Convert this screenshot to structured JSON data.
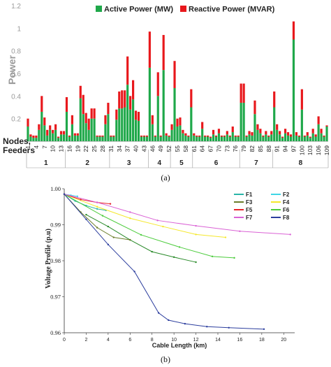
{
  "panel_a_label": "(a)",
  "panel_b_label": "(b)",
  "chart_data": [
    {
      "type": "bar",
      "stacked": true,
      "ylabel": "Power",
      "xlabel": "Nodes, Feeders",
      "ylim": [
        0,
        1.2
      ],
      "yticks": [
        "0.2",
        "0.4",
        "0.6",
        "0.8",
        "1",
        "1.2"
      ],
      "grid": false,
      "legend_position": "top",
      "colors": {
        "active": "#1fa84a",
        "reactive": "#e8181c"
      },
      "node_tick_labels": [
        "1",
        "4",
        "7",
        "10",
        "13",
        "16",
        "19",
        "22",
        "25",
        "28",
        "31",
        "34",
        "37",
        "40",
        "43",
        "46",
        "49",
        "52",
        "55",
        "58",
        "61",
        "64",
        "67",
        "70",
        "73",
        "76",
        "79",
        "82",
        "85",
        "88",
        "91",
        "94",
        "97",
        "100",
        "103",
        "106",
        "109"
      ],
      "feeders": [
        {
          "label": "1",
          "from": 1,
          "to": 14
        },
        {
          "label": "2",
          "from": 15,
          "to": 30
        },
        {
          "label": "3",
          "from": 31,
          "to": 44
        },
        {
          "label": "4",
          "from": 45,
          "to": 52
        },
        {
          "label": "5",
          "from": 53,
          "to": 60
        },
        {
          "label": "6",
          "from": 61,
          "to": 77
        },
        {
          "label": "7",
          "from": 78,
          "to": 89
        },
        {
          "label": "8",
          "from": 90,
          "to": 109
        }
      ],
      "series": [
        {
          "name": "Active Power (MW)",
          "values": [
            0.13,
            0.04,
            0.03,
            0.03,
            0.1,
            0.26,
            0.14,
            0.05,
            0.1,
            0.07,
            0.1,
            0.03,
            0.06,
            0.06,
            0.26,
            0.04,
            0.15,
            0.05,
            0.05,
            0.38,
            0.24,
            0.16,
            0.1,
            0.2,
            0.2,
            0.04,
            0.04,
            0.04,
            0.15,
            0.24,
            0.04,
            0.04,
            0.19,
            0.29,
            0.29,
            0.3,
            0.5,
            0.28,
            0.37,
            0.19,
            0.18,
            0.04,
            0.04,
            0.04,
            0.65,
            0.15,
            0.04,
            0.4,
            0.04,
            0.63,
            0.05,
            0.04,
            0.1,
            0.47,
            0.13,
            0.14,
            0.07,
            0.05,
            0.04,
            0.3,
            0.05,
            0.04,
            0.04,
            0.11,
            0.04,
            0.04,
            0.03,
            0.06,
            0.04,
            0.07,
            0.04,
            0.04,
            0.06,
            0.04,
            0.08,
            0.04,
            0.04,
            0.34,
            0.34,
            0.04,
            0.06,
            0.05,
            0.24,
            0.1,
            0.07,
            0.04,
            0.06,
            0.04,
            0.06,
            0.3,
            0.1,
            0.06,
            0.03,
            0.07,
            0.05,
            0.04,
            0.9,
            0.05,
            0.04,
            0.28,
            0.04,
            0.05,
            0.03,
            0.07,
            0.04,
            0.15,
            0.07,
            0.04,
            0.13
          ]
        },
        {
          "name": "Reactive Power (MVAR)",
          "values": [
            0.07,
            0.02,
            0.02,
            0.02,
            0.05,
            0.14,
            0.07,
            0.05,
            0.04,
            0.03,
            0.05,
            0.01,
            0.03,
            0.03,
            0.13,
            0.01,
            0.08,
            0.02,
            0.02,
            0.11,
            0.17,
            0.09,
            0.1,
            0.09,
            0.09,
            0.01,
            0.01,
            0.01,
            0.08,
            0.1,
            0.01,
            0.01,
            0.09,
            0.15,
            0.16,
            0.15,
            0.25,
            0.12,
            0.17,
            0.08,
            0.08,
            0.01,
            0.01,
            0.01,
            0.32,
            0.08,
            0.01,
            0.21,
            0.01,
            0.31,
            0.02,
            0.01,
            0.05,
            0.24,
            0.07,
            0.07,
            0.03,
            0.02,
            0.01,
            0.16,
            0.02,
            0.01,
            0.01,
            0.06,
            0.01,
            0.01,
            0.01,
            0.04,
            0.01,
            0.04,
            0.01,
            0.01,
            0.03,
            0.01,
            0.05,
            0.01,
            0.01,
            0.17,
            0.17,
            0.01,
            0.03,
            0.03,
            0.12,
            0.05,
            0.04,
            0.01,
            0.03,
            0.01,
            0.03,
            0.14,
            0.05,
            0.03,
            0.01,
            0.04,
            0.03,
            0.02,
            0.16,
            0.03,
            0.01,
            0.18,
            0.01,
            0.03,
            0.01,
            0.04,
            0.02,
            0.07,
            0.04,
            0.01,
            0.01
          ]
        }
      ]
    },
    {
      "type": "line",
      "xlabel": "Cable Length (km)",
      "ylabel": "Voltage Profile (p.u)",
      "xlim": [
        0,
        21
      ],
      "ylim": [
        0.96,
        1.0
      ],
      "xticks": [
        0,
        2,
        4,
        6,
        8,
        10,
        12,
        14,
        16,
        18,
        20
      ],
      "yticks": [
        "1.00",
        "0.99",
        "0.98",
        "0.97",
        "0.96"
      ],
      "grid": false,
      "legend_position": "top-right",
      "series": [
        {
          "name": "F1",
          "color": "#2ab5a8",
          "x": [
            0,
            1.0,
            2.0,
            3.0,
            3.8
          ],
          "y": [
            0.9985,
            0.9966,
            0.9953,
            0.9944,
            0.994
          ]
        },
        {
          "name": "F2",
          "color": "#3fd6e6",
          "x": [
            0,
            0.6,
            1.2
          ],
          "y": [
            0.9985,
            0.9982,
            0.9979
          ]
        },
        {
          "name": "F3",
          "color": "#6b7d2a",
          "x": [
            0,
            1.5,
            3.0,
            4.5,
            6.0
          ],
          "y": [
            0.9985,
            0.9935,
            0.9892,
            0.9865,
            0.9858
          ]
        },
        {
          "name": "F4",
          "color": "#f5e82c",
          "x": [
            0,
            3.0,
            6.0,
            9.0,
            12.0,
            14.7
          ],
          "y": [
            0.9985,
            0.995,
            0.9918,
            0.9895,
            0.9873,
            0.9865
          ]
        },
        {
          "name": "F5",
          "color": "#e8242a",
          "x": [
            0,
            1.5,
            3.0,
            4.2
          ],
          "y": [
            0.9985,
            0.997,
            0.9962,
            0.9958
          ]
        },
        {
          "name": "F6",
          "color": "#4ccc3c",
          "x": [
            0,
            3.5,
            7.0,
            10.5,
            13.5,
            15.5
          ],
          "y": [
            0.9985,
            0.9925,
            0.9872,
            0.9838,
            0.9812,
            0.9808
          ]
        },
        {
          "name": "F7",
          "color": "#da62d5",
          "x": [
            0,
            3.0,
            6.0,
            8.5,
            12.0,
            16.0,
            20.6
          ],
          "y": [
            0.9985,
            0.9962,
            0.9935,
            0.9912,
            0.9897,
            0.9882,
            0.9873
          ]
        },
        {
          "name": "F8",
          "color": "#2c3e9e",
          "x": [
            0,
            2.0,
            4.0,
            6.4,
            8.6,
            9.5,
            11.0,
            13.0,
            15.0,
            18.2
          ],
          "y": [
            0.9985,
            0.9915,
            0.9845,
            0.977,
            0.9655,
            0.9635,
            0.9625,
            0.9617,
            0.9614,
            0.961
          ]
        }
      ],
      "extra_series_green_dark": {
        "name": "",
        "color": "#2a8a2a",
        "x": [
          2.0,
          4.0,
          6.0,
          8.0,
          10.0,
          12.0
        ],
        "y": [
          0.9928,
          0.9895,
          0.9858,
          0.9825,
          0.981,
          0.9796
        ]
      }
    }
  ]
}
